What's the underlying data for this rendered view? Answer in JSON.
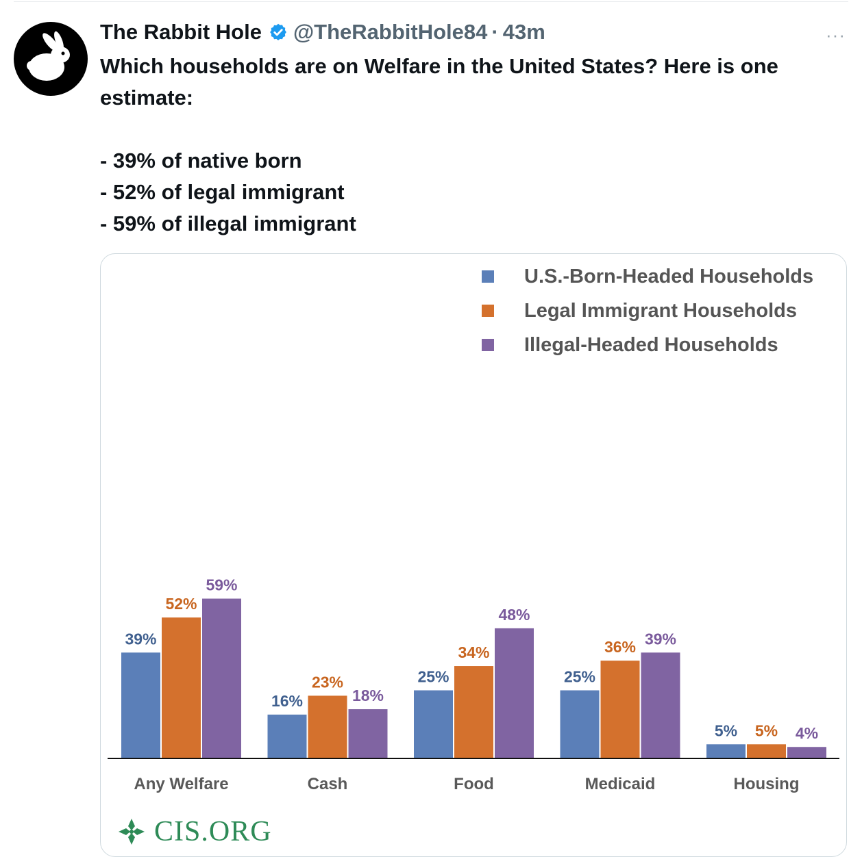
{
  "tweet": {
    "display_name": "The Rabbit Hole",
    "handle": "@TheRabbitHole84",
    "separator": "·",
    "time": "43m",
    "more": "···",
    "text_lines": [
      "Which households are on Welfare in the United States? Here is one estimate:",
      "",
      "- 39% of native born",
      "- 52% of legal immigrant",
      "- 59% of illegal immigrant"
    ]
  },
  "colors": {
    "us_born": "#5b7fb8",
    "legal": "#d4712d",
    "illegal": "#8064a2",
    "verified": "#1d9bf0",
    "cis_green": "#2e8b57"
  },
  "chart_data": {
    "type": "bar",
    "categories": [
      "Any Welfare",
      "Cash",
      "Food",
      "Medicaid",
      "Housing"
    ],
    "series": [
      {
        "name": "U.S.-Born-Headed Households",
        "values": [
          39,
          16,
          25,
          25,
          5
        ],
        "labels": [
          "39%",
          "16%",
          "25%",
          "25%",
          "5%"
        ]
      },
      {
        "name": "Legal Immigrant Households",
        "values": [
          52,
          23,
          34,
          36,
          5
        ],
        "labels": [
          "52%",
          "23%",
          "34%",
          "36%",
          "5%"
        ]
      },
      {
        "name": "Illegal-Headed Households",
        "values": [
          59,
          18,
          48,
          39,
          4
        ],
        "labels": [
          "59%",
          "18%",
          "48%",
          "39%",
          "4%"
        ]
      }
    ],
    "ylim": [
      0,
      60
    ],
    "grid": false,
    "legend_position": "top-right"
  },
  "source_logo": {
    "text": "CIS.ORG"
  }
}
